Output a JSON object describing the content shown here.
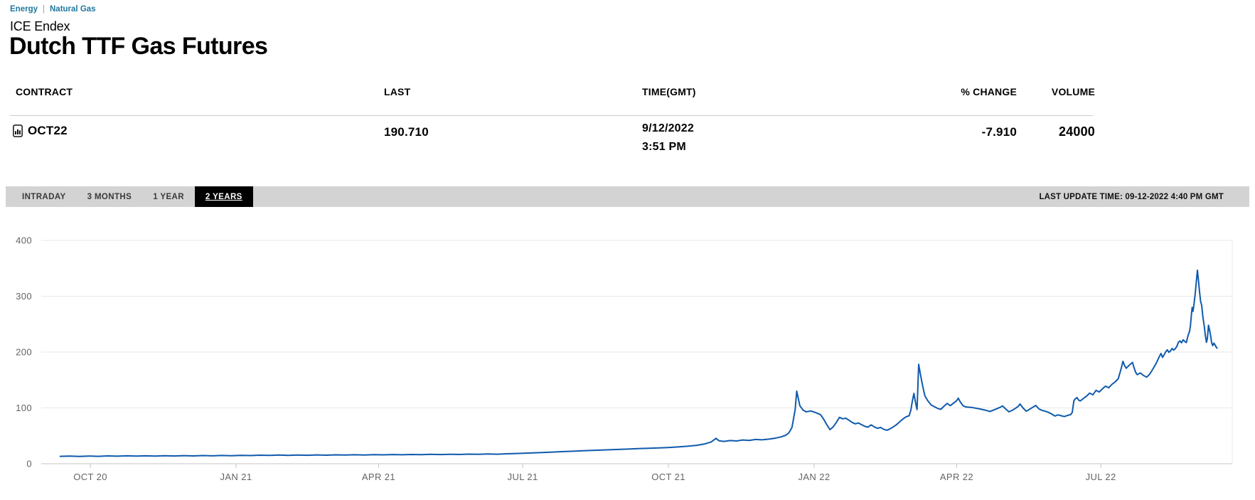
{
  "breadcrumb": {
    "items": [
      "Energy",
      "Natural Gas"
    ],
    "separator": "|"
  },
  "header": {
    "exchange": "ICE Endex",
    "title": "Dutch TTF Gas Futures"
  },
  "table": {
    "columns": {
      "contract": "CONTRACT",
      "last": "LAST",
      "time": "TIME(GMT)",
      "change": "% CHANGE",
      "volume": "VOLUME"
    },
    "row": {
      "contract": "OCT22",
      "contract_icon": "chart-document-icon",
      "last": "190.710",
      "date": "9/12/2022",
      "time": "3:51 PM",
      "pct_change": "-7.910",
      "volume": "24000"
    }
  },
  "toolbar": {
    "tabs": [
      {
        "label": "INTRADAY",
        "selected": false
      },
      {
        "label": "3 MONTHS",
        "selected": false
      },
      {
        "label": "1 YEAR",
        "selected": false
      },
      {
        "label": "2 YEARS",
        "selected": true
      }
    ],
    "last_update": "LAST UPDATE TIME: 09-12-2022 4:40 PM GMT"
  },
  "colors": {
    "accent_link": "#21799e",
    "line": "#0f5aad",
    "tab_bar_bg": "#d3d3d3",
    "selected_tab_bg": "#000000",
    "grid": "#e8e8e8",
    "axis_line": "#c4c4c4",
    "axis_text": "#636363"
  },
  "chart_data": {
    "type": "line",
    "title": "Dutch TTF Gas Futures OCT22 contract, 2-year price history",
    "xlabel": "",
    "ylabel": "",
    "grid": "horizontal",
    "legend": "none",
    "x_unit": "days since 2020-09-12",
    "x_domain": [
      -12,
      740
    ],
    "ylim": [
      0,
      400
    ],
    "y_ticks": [
      0,
      100,
      200,
      300,
      400
    ],
    "x_ticks": [
      {
        "label": "OCT 20",
        "day": 19
      },
      {
        "label": "JAN 21",
        "day": 111
      },
      {
        "label": "APR 21",
        "day": 201
      },
      {
        "label": "JUL 21",
        "day": 292
      },
      {
        "label": "OCT 21",
        "day": 384
      },
      {
        "label": "JAN 22",
        "day": 476
      },
      {
        "label": "APR 22",
        "day": 566
      },
      {
        "label": "JUL 22",
        "day": 657
      }
    ],
    "series": [
      {
        "name": "OCT22",
        "color": "#0f5aad",
        "points": [
          [
            0,
            13.2
          ],
          [
            6,
            13.6
          ],
          [
            12,
            13.1
          ],
          [
            18,
            13.8
          ],
          [
            24,
            13.3
          ],
          [
            30,
            14.0
          ],
          [
            36,
            13.5
          ],
          [
            42,
            14.1
          ],
          [
            48,
            13.6
          ],
          [
            54,
            14.2
          ],
          [
            60,
            13.7
          ],
          [
            66,
            14.3
          ],
          [
            72,
            13.9
          ],
          [
            78,
            14.5
          ],
          [
            84,
            14.0
          ],
          [
            90,
            14.6
          ],
          [
            96,
            14.2
          ],
          [
            102,
            14.8
          ],
          [
            108,
            14.4
          ],
          [
            114,
            15.0
          ],
          [
            120,
            14.7
          ],
          [
            126,
            15.3
          ],
          [
            132,
            14.9
          ],
          [
            138,
            15.5
          ],
          [
            144,
            15.0
          ],
          [
            150,
            15.6
          ],
          [
            156,
            15.2
          ],
          [
            162,
            15.8
          ],
          [
            168,
            15.3
          ],
          [
            174,
            15.9
          ],
          [
            180,
            15.5
          ],
          [
            186,
            16.1
          ],
          [
            192,
            15.7
          ],
          [
            198,
            16.2
          ],
          [
            204,
            15.9
          ],
          [
            210,
            16.4
          ],
          [
            216,
            16.0
          ],
          [
            222,
            16.6
          ],
          [
            228,
            16.2
          ],
          [
            234,
            16.8
          ],
          [
            240,
            16.4
          ],
          [
            246,
            17.0
          ],
          [
            252,
            16.6
          ],
          [
            258,
            17.2
          ],
          [
            264,
            16.9
          ],
          [
            270,
            17.5
          ],
          [
            276,
            17.1
          ],
          [
            282,
            17.8
          ],
          [
            288,
            18.3
          ],
          [
            294,
            19.0
          ],
          [
            300,
            19.6
          ],
          [
            306,
            20.3
          ],
          [
            312,
            21.0
          ],
          [
            318,
            21.8
          ],
          [
            324,
            22.4
          ],
          [
            330,
            23.2
          ],
          [
            336,
            23.8
          ],
          [
            342,
            24.6
          ],
          [
            348,
            25.2
          ],
          [
            354,
            25.9
          ],
          [
            360,
            26.5
          ],
          [
            366,
            27.2
          ],
          [
            372,
            27.8
          ],
          [
            378,
            28.4
          ],
          [
            384,
            29.0
          ],
          [
            390,
            30.0
          ],
          [
            396,
            31.4
          ],
          [
            402,
            33.0
          ],
          [
            407,
            35.5
          ],
          [
            411,
            39.0
          ],
          [
            414,
            45.5
          ],
          [
            416,
            41.0
          ],
          [
            419,
            40.0
          ],
          [
            423,
            41.5
          ],
          [
            427,
            40.8
          ],
          [
            431,
            42.5
          ],
          [
            435,
            41.8
          ],
          [
            439,
            43.5
          ],
          [
            443,
            42.8
          ],
          [
            447,
            44.0
          ],
          [
            451,
            45.5
          ],
          [
            455,
            48.0
          ],
          [
            458,
            51.0
          ],
          [
            460,
            55.0
          ],
          [
            462,
            65.0
          ],
          [
            464,
            96.0
          ],
          [
            465,
            130.0
          ],
          [
            466,
            117.0
          ],
          [
            467,
            104.0
          ],
          [
            469,
            96.0
          ],
          [
            471,
            93.0
          ],
          [
            474,
            94.5
          ],
          [
            477,
            91.5
          ],
          [
            480,
            88.0
          ],
          [
            482,
            80.0
          ],
          [
            484,
            70.0
          ],
          [
            486,
            61.0
          ],
          [
            488,
            66.0
          ],
          [
            490,
            74.0
          ],
          [
            492,
            83.0
          ],
          [
            494,
            80.5
          ],
          [
            496,
            81.5
          ],
          [
            498,
            78.0
          ],
          [
            500,
            74.0
          ],
          [
            502,
            71.5
          ],
          [
            504,
            73.0
          ],
          [
            506,
            70.0
          ],
          [
            508,
            67.0
          ],
          [
            510,
            65.5
          ],
          [
            512,
            69.5
          ],
          [
            514,
            66.0
          ],
          [
            516,
            63.5
          ],
          [
            518,
            65.0
          ],
          [
            520,
            61.5
          ],
          [
            522,
            60.0
          ],
          [
            524,
            62.5
          ],
          [
            526,
            66.0
          ],
          [
            528,
            70.0
          ],
          [
            530,
            75.0
          ],
          [
            532,
            80.0
          ],
          [
            534,
            84.0
          ],
          [
            536,
            86.0
          ],
          [
            537,
            95.0
          ],
          [
            538,
            112.0
          ],
          [
            539,
            126.0
          ],
          [
            540,
            110.0
          ],
          [
            541,
            97.0
          ],
          [
            542,
            178.0
          ],
          [
            543,
            162.0
          ],
          [
            544,
            147.0
          ],
          [
            545,
            133.0
          ],
          [
            546,
            121.0
          ],
          [
            548,
            112.0
          ],
          [
            550,
            105.0
          ],
          [
            552,
            102.0
          ],
          [
            554,
            99.0
          ],
          [
            556,
            97.5
          ],
          [
            558,
            103.0
          ],
          [
            560,
            108.0
          ],
          [
            562,
            104.0
          ],
          [
            564,
            108.5
          ],
          [
            566,
            113.0
          ],
          [
            567,
            117.5
          ],
          [
            568,
            112.0
          ],
          [
            570,
            104.0
          ],
          [
            572,
            101.5
          ],
          [
            575,
            101.0
          ],
          [
            578,
            99.5
          ],
          [
            581,
            98.0
          ],
          [
            584,
            96.0
          ],
          [
            587,
            93.5
          ],
          [
            590,
            97.0
          ],
          [
            593,
            100.5
          ],
          [
            595,
            103.5
          ],
          [
            597,
            98.0
          ],
          [
            599,
            93.0
          ],
          [
            601,
            95.5
          ],
          [
            603,
            99.0
          ],
          [
            605,
            103.0
          ],
          [
            606,
            107.0
          ],
          [
            608,
            99.5
          ],
          [
            610,
            94.0
          ],
          [
            612,
            97.5
          ],
          [
            614,
            101.0
          ],
          [
            616,
            104.5
          ],
          [
            618,
            98.0
          ],
          [
            620,
            95.5
          ],
          [
            622,
            94.0
          ],
          [
            624,
            92.0
          ],
          [
            626,
            89.0
          ],
          [
            628,
            85.5
          ],
          [
            630,
            87.5
          ],
          [
            632,
            86.0
          ],
          [
            634,
            84.5
          ],
          [
            636,
            86.5
          ],
          [
            638,
            88.0
          ],
          [
            639,
            92.0
          ],
          [
            640,
            113.0
          ],
          [
            641,
            116.5
          ],
          [
            642,
            118.5
          ],
          [
            643,
            114.0
          ],
          [
            644,
            112.5
          ],
          [
            645,
            114.5
          ],
          [
            646,
            117.0
          ],
          [
            648,
            121.0
          ],
          [
            650,
            126.5
          ],
          [
            652,
            123.5
          ],
          [
            654,
            131.5
          ],
          [
            656,
            128.5
          ],
          [
            658,
            134.0
          ],
          [
            660,
            139.0
          ],
          [
            662,
            136.0
          ],
          [
            664,
            142.0
          ],
          [
            666,
            146.5
          ],
          [
            668,
            152.0
          ],
          [
            669,
            162.0
          ],
          [
            670,
            172.0
          ],
          [
            671,
            183.5
          ],
          [
            672,
            176.0
          ],
          [
            673,
            171.0
          ],
          [
            675,
            176.5
          ],
          [
            677,
            181.5
          ],
          [
            678,
            172.0
          ],
          [
            679,
            164.0
          ],
          [
            680,
            159.5
          ],
          [
            682,
            162.5
          ],
          [
            684,
            158.0
          ],
          [
            686,
            155.0
          ],
          [
            688,
            161.0
          ],
          [
            690,
            170.0
          ],
          [
            692,
            180.0
          ],
          [
            693,
            186.0
          ],
          [
            694,
            192.0
          ],
          [
            695,
            197.5
          ],
          [
            696,
            190.5
          ],
          [
            697,
            195.0
          ],
          [
            698,
            200.5
          ],
          [
            699,
            204.0
          ],
          [
            700,
            199.5
          ],
          [
            701,
            202.0
          ],
          [
            702,
            206.5
          ],
          [
            703,
            203.5
          ],
          [
            704,
            206.0
          ],
          [
            705,
            210.0
          ],
          [
            706,
            217.5
          ],
          [
            707,
            220.0
          ],
          [
            708,
            216.5
          ],
          [
            709,
            222.0
          ],
          [
            710,
            219.0
          ],
          [
            711,
            217.0
          ],
          [
            712,
            228.5
          ],
          [
            713,
            237.0
          ],
          [
            713.6,
            247.0
          ],
          [
            714.2,
            266.0
          ],
          [
            714.7,
            280.0
          ],
          [
            715.2,
            273.0
          ],
          [
            715.8,
            285.0
          ],
          [
            716.5,
            302.0
          ],
          [
            717.2,
            322.0
          ],
          [
            718,
            346.5
          ],
          [
            718.6,
            331.0
          ],
          [
            719.3,
            309.0
          ],
          [
            720,
            291.0
          ],
          [
            720.7,
            284.0
          ],
          [
            721.5,
            262.0
          ],
          [
            722.3,
            247.0
          ],
          [
            723,
            230.0
          ],
          [
            723.7,
            217.5
          ],
          [
            724.3,
            224.0
          ],
          [
            725,
            248.0
          ],
          [
            725.6,
            241.0
          ],
          [
            726.3,
            230.0
          ],
          [
            727,
            217.0
          ],
          [
            727.7,
            211.5
          ],
          [
            728.4,
            216.0
          ],
          [
            729.1,
            213.0
          ],
          [
            729.7,
            209.5
          ],
          [
            730.4,
            207.0
          ]
        ]
      }
    ]
  }
}
